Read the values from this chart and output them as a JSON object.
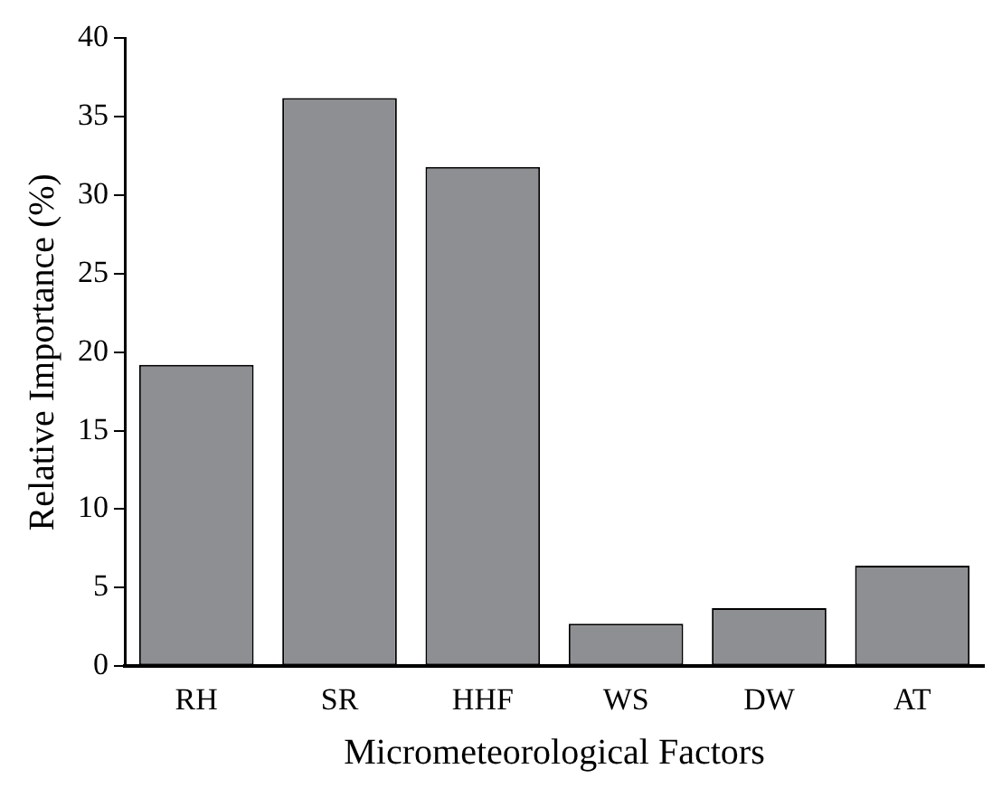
{
  "chart_data": {
    "type": "bar",
    "xlabel": "Micrometeorological Factors",
    "ylabel": "Relative Importance (%)",
    "categories": [
      "RH",
      "SR",
      "HHF",
      "WS",
      "DW",
      "AT"
    ],
    "values": [
      19.2,
      36.2,
      31.8,
      2.7,
      3.7,
      6.4
    ],
    "color": "#8e8f93",
    "ylim": [
      0,
      40
    ],
    "yticks": [
      0,
      5,
      10,
      15,
      20,
      25,
      30,
      35,
      40
    ],
    "grid": false,
    "legend": false
  }
}
